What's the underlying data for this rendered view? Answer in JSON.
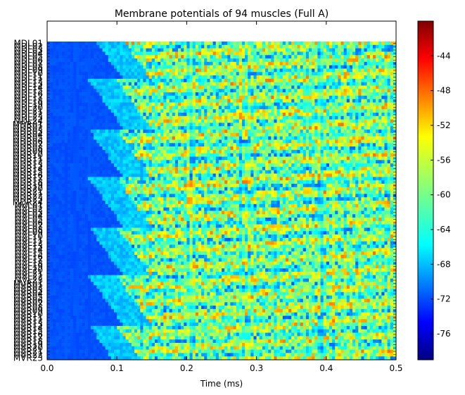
{
  "chart_data": {
    "type": "heatmap",
    "title": "Membrane potentials of 94 muscles (Full A)",
    "xlabel": "Time (ms)",
    "ylabel": "",
    "xlim": [
      0.0,
      0.5
    ],
    "x_ticks": [
      "0.0",
      "0.1",
      "0.2",
      "0.3",
      "0.4",
      "0.5"
    ],
    "row_count": 94,
    "y_tick_labels": [
      "MDL01",
      "MDL02",
      "MDL03",
      "MDL04",
      "MDL05",
      "MDL06",
      "MDL07",
      "MDL08",
      "MDL09",
      "MDL10",
      "MDL11",
      "MDL12",
      "MDL13",
      "MDL14",
      "MDL15",
      "MDL16",
      "MDL17",
      "MDL18",
      "MDL19",
      "MDL20",
      "MDL21",
      "MDL22",
      "MDL23",
      "MDL24",
      "MDR01",
      "MDR02",
      "MDR03",
      "MDR04",
      "MDR05",
      "MDR06",
      "MDR07",
      "MDR08",
      "MDR09",
      "MDR10",
      "MDR11",
      "MDR12",
      "MDR13",
      "MDR14",
      "MDR15",
      "MDR16",
      "MDR17",
      "MDR18",
      "MDR19",
      "MDR20",
      "MDR21",
      "MDR22",
      "MDR23",
      "MDR24",
      "MVL01",
      "MVL02",
      "MVL03",
      "MVL04",
      "MVL05",
      "MVL06",
      "MVL07",
      "MVL08",
      "MVL09",
      "MVL10",
      "MVL11",
      "MVL12",
      "MVL13",
      "MVL14",
      "MVL15",
      "MVL16",
      "MVL17",
      "MVL18",
      "MVL19",
      "MVL20",
      "MVL21",
      "MVL22",
      "MVL23",
      "MVR01",
      "MVR02",
      "MVR03",
      "MVR04",
      "MVR05",
      "MVR06",
      "MVR07",
      "MVR08",
      "MVR09",
      "MVR10",
      "MVR11",
      "MVR12",
      "MVR13",
      "MVR14",
      "MVR15",
      "MVR16",
      "MVR17",
      "MVR18",
      "MVR19",
      "MVR20",
      "MVR21",
      "MVR22",
      "MVR23"
    ],
    "colorbar": {
      "range": [
        -79,
        -40
      ],
      "ticks": [
        "-44",
        "-48",
        "-52",
        "-56",
        "-60",
        "-64",
        "-68",
        "-72",
        "-76"
      ],
      "tick_values": [
        -44,
        -48,
        -52,
        -56,
        -60,
        -64,
        -68,
        -72,
        -76
      ],
      "colormap": "jet"
    },
    "grid": false,
    "legend": "none"
  }
}
